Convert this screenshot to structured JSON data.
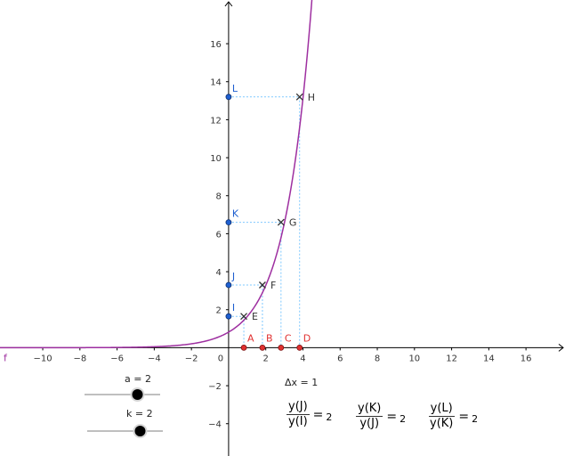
{
  "function": {
    "name": "f",
    "color": "#9e2fa0",
    "a": 2,
    "k": 2,
    "offset": 0.18
  },
  "axes": {
    "xlim": [
      -12.3,
      18.1
    ],
    "ylim": [
      -5.7,
      18.3
    ],
    "x_ticks": [
      "−10",
      "−8",
      "−6",
      "−4",
      "−2",
      "0",
      "2",
      "4",
      "6",
      "8",
      "10",
      "12",
      "14",
      "16"
    ],
    "x_tick_values": [
      -10,
      -8,
      -6,
      -4,
      -2,
      0,
      2,
      4,
      6,
      8,
      10,
      12,
      14,
      16
    ],
    "y_ticks": [
      "16",
      "14",
      "12",
      "10",
      "8",
      "6",
      "4",
      "2",
      "−2",
      "−4"
    ],
    "y_tick_values": [
      16,
      14,
      12,
      10,
      8,
      6,
      4,
      2,
      -2,
      -4
    ],
    "axis_color": "#000000",
    "tick_color": "#333333"
  },
  "x_points": [
    {
      "label": "A",
      "x": 0.82
    },
    {
      "label": "B",
      "x": 1.82
    },
    {
      "label": "C",
      "x": 2.82
    },
    {
      "label": "D",
      "x": 3.82
    }
  ],
  "curve_points": [
    {
      "label": "E",
      "x": 0.82,
      "y": 1.65
    },
    {
      "label": "F",
      "x": 1.82,
      "y": 3.3
    },
    {
      "label": "G",
      "x": 2.82,
      "y": 6.6
    },
    {
      "label": "H",
      "x": 3.82,
      "y": 13.2
    }
  ],
  "y_points": [
    {
      "label": "I",
      "y": 1.65
    },
    {
      "label": "J",
      "y": 3.3
    },
    {
      "label": "K",
      "y": 6.6
    },
    {
      "label": "L",
      "y": 13.2
    }
  ],
  "colors": {
    "x_point": "#e03030",
    "y_point": "#1e5fd0",
    "curve_point": "#333333",
    "guide": "#7ec8ff",
    "slider_track": "#999999",
    "slider_knob": "#000000"
  },
  "sliders": [
    {
      "id": "a",
      "caption": "a = 2",
      "value": 2,
      "min": -5,
      "max": 5
    },
    {
      "id": "k",
      "caption": "k = 2",
      "value": 2,
      "min": -5,
      "max": 5
    }
  ],
  "delta_x": {
    "text": "Δx = 1"
  },
  "ratios": [
    {
      "num": "y(J)",
      "den": "y(I)",
      "eq": "=",
      "value": "2"
    },
    {
      "num": "y(K)",
      "den": "y(J)",
      "eq": "=",
      "value": "2"
    },
    {
      "num": "y(L)",
      "den": "y(K)",
      "eq": "=",
      "value": "2"
    }
  ]
}
